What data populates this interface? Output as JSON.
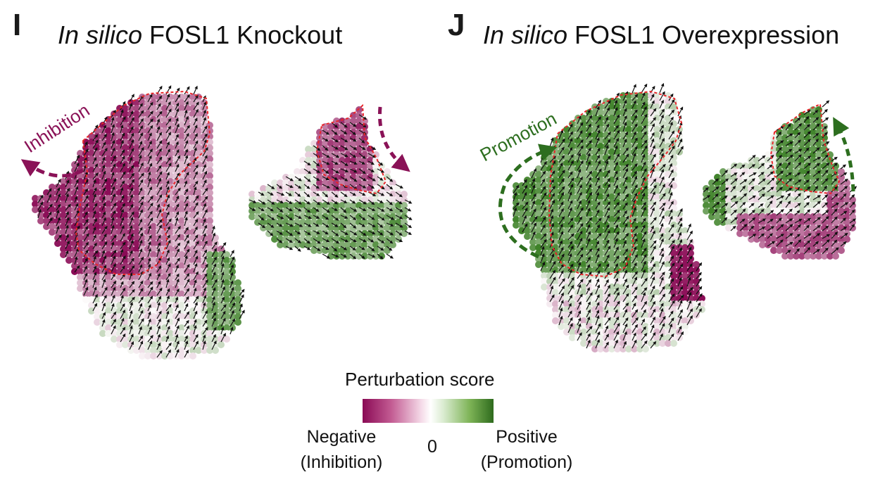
{
  "panel_i": {
    "letter": "I",
    "title_italic": "In silico",
    "title_rest": " FOSL1 Knockout",
    "annotation": "Inhibition",
    "annotation_color": "#8a1257"
  },
  "panel_j": {
    "letter": "J",
    "title_italic": "In silico",
    "title_rest": " FOSL1 Overexpression",
    "annotation": "Promotion",
    "annotation_color": "#2d6e1f"
  },
  "legend": {
    "title": "Perturbation score",
    "negative_label": "Negative",
    "negative_sub": "(Inhibition)",
    "zero_label": "0",
    "positive_label": "Positive",
    "positive_sub": "(Promotion)",
    "negative_color": "#8a0a55",
    "positive_color": "#2e6b1d"
  },
  "colors": {
    "outline": "#e8262a",
    "arrow": "#111111"
  }
}
